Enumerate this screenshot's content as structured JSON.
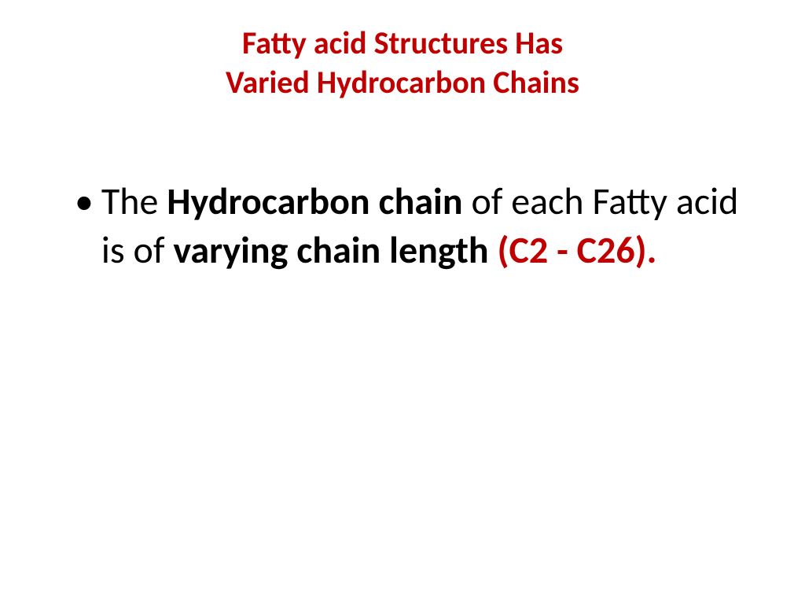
{
  "colors": {
    "title_color": "#c00000",
    "body_text_color": "#000000",
    "accent_color": "#c00000",
    "background_color": "#ffffff"
  },
  "typography": {
    "title_fontsize": 40,
    "body_fontsize": 48,
    "font_family": "Calibri"
  },
  "title": {
    "line1": "Fatty acid Structures Has",
    "line2": "Varied Hydrocarbon Chains"
  },
  "body": {
    "bullet_marker": "•",
    "text_part1": "The ",
    "text_part2_bold": "Hydrocarbon chain ",
    "text_part3": "of each Fatty acid is of ",
    "text_part4_bold": "varying chain length ",
    "text_part5_bold_red": "(C2 - C26)."
  }
}
